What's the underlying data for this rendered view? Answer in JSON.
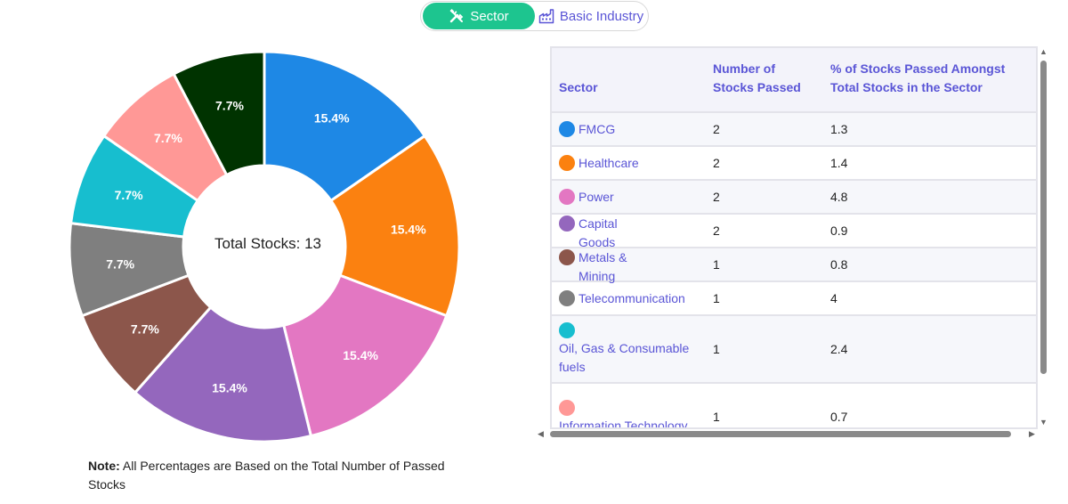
{
  "toggle": {
    "sector_label": "Sector",
    "basic_industry_label": "Basic Industry"
  },
  "chart_data": {
    "type": "pie",
    "variant": "donut",
    "center_label": "Total Stocks: 13",
    "total": 13,
    "slices": [
      {
        "label": "FMCG",
        "value": 2,
        "percent_label": "15.4%",
        "color": "#1e88e5"
      },
      {
        "label": "Healthcare",
        "value": 2,
        "percent_label": "15.4%",
        "color": "#fb8110"
      },
      {
        "label": "Power",
        "value": 2,
        "percent_label": "15.4%",
        "color": "#e377c2"
      },
      {
        "label": "Capital Goods",
        "value": 2,
        "percent_label": "15.4%",
        "color": "#9467bd"
      },
      {
        "label": "Metals & Mining",
        "value": 1,
        "percent_label": "7.7%",
        "color": "#8c564b"
      },
      {
        "label": "Telecommunication",
        "value": 1,
        "percent_label": "7.7%",
        "color": "#7f7f7f"
      },
      {
        "label": "Oil, Gas & Consumable fuels",
        "value": 1,
        "percent_label": "7.7%",
        "color": "#17becf"
      },
      {
        "label": "Information Technology",
        "value": 1,
        "percent_label": "7.7%",
        "color": "#ff9896"
      },
      {
        "label": "",
        "value": 1,
        "percent_label": "7.7%",
        "color": "#003300"
      }
    ]
  },
  "note": {
    "prefix": "Note:",
    "text": " All Percentages are Based on the Total Number of Passed Stocks"
  },
  "table": {
    "headers": [
      "Sector",
      "Number of Stocks Passed",
      "% of Stocks Passed Amongst Total Stocks in the Sector"
    ],
    "rows": [
      {
        "sector": "FMCG",
        "count": "2",
        "pct": "1.3",
        "color": "#1e88e5"
      },
      {
        "sector": "Healthcare",
        "count": "2",
        "pct": "1.4",
        "color": "#fb8110"
      },
      {
        "sector": "Power",
        "count": "2",
        "pct": "4.8",
        "color": "#e377c2"
      },
      {
        "sector": "Capital Goods",
        "count": "2",
        "pct": "0.9",
        "color": "#9467bd"
      },
      {
        "sector": "Metals & Mining",
        "count": "1",
        "pct": "0.8",
        "color": "#8c564b"
      },
      {
        "sector": "Telecommunication",
        "count": "1",
        "pct": "4",
        "color": "#7f7f7f"
      },
      {
        "sector": "Oil, Gas & Consumable fuels",
        "count": "1",
        "pct": "2.4",
        "color": "#17becf"
      },
      {
        "sector": "Information Technology",
        "count": "1",
        "pct": "0.7",
        "color": "#ff9896"
      }
    ]
  }
}
